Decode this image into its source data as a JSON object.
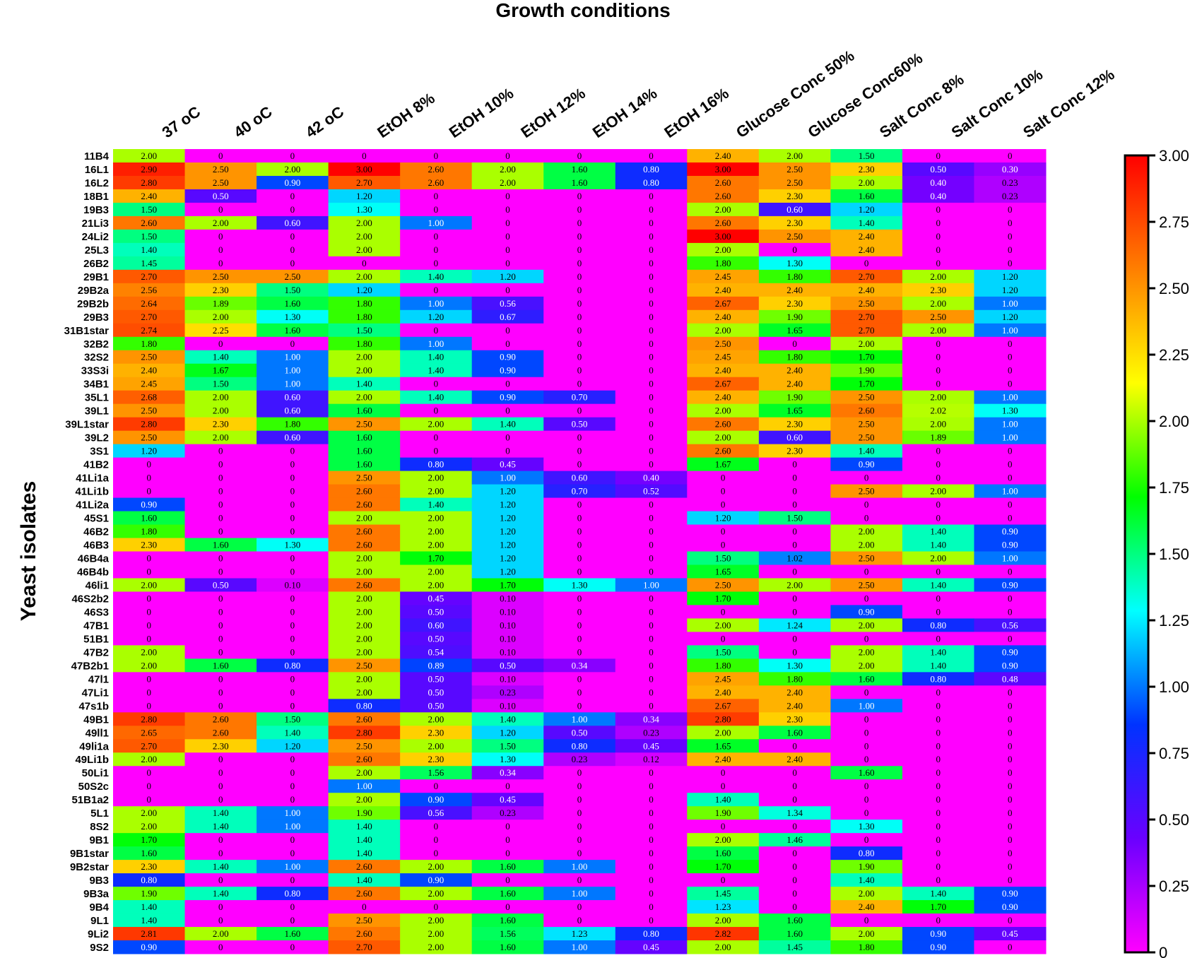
{
  "chart_data": {
    "type": "heatmap",
    "title": "Growth conditions",
    "ylabel": "Yeast isolates",
    "columns": [
      "37 oC",
      "40 oC",
      "42 oC",
      "EtOH 8%",
      "EtOH 10%",
      "EtOH 12%",
      "EtOH 14%",
      "EtOH 16%",
      "Glucose Conc 50%",
      "Glucose Conc60%",
      "Salt Conc 8%",
      "Salt Conc 10%",
      "Salt Conc 12%"
    ],
    "rows": [
      "11B4",
      "16L1",
      "16L2",
      "18B1",
      "19B3",
      "21Li3",
      "24Li2",
      "25L3",
      "26B2",
      "29B1",
      "29B2a",
      "29B2b",
      "29B3",
      "31B1star",
      "32B2",
      "32S2",
      "33S3i",
      "34B1",
      "35L1",
      "39L1",
      "39L1star",
      "39L2",
      "3S1",
      "41B2",
      "41Li1a",
      "41Li1b",
      "41Li2a",
      "45S1",
      "46B2",
      "46B3",
      "46B4a",
      "46B4b",
      "46li1",
      "46S2b2",
      "46S3",
      "47B1",
      "51B1",
      "47B2",
      "47B2b1",
      "47l1",
      "47Li1",
      "47s1b",
      "49B1",
      "49ll1",
      "49li1a",
      "49Li1b",
      "50Li1",
      "50S2c",
      "51B1a2",
      "5L1",
      "8S2",
      "9B1",
      "9B1star",
      "9B2star",
      "9B3",
      "9B3a",
      "9B4",
      "9L1",
      "9Li2",
      "9S2"
    ],
    "values": [
      [
        "2.00",
        "0",
        "0",
        "0",
        "0",
        "0",
        "0",
        "0",
        "2.40",
        "2.00",
        "1.50",
        "0",
        "0"
      ],
      [
        "2.90",
        "2.50",
        "2.00",
        "3.00",
        "2.60",
        "2.00",
        "1.60",
        "0.80",
        "3.00",
        "2.50",
        "2.30",
        "0.50",
        "0.30"
      ],
      [
        "2.80",
        "2.50",
        "0.90",
        "2.70",
        "2.60",
        "2.00",
        "1.60",
        "0.80",
        "2.60",
        "2.50",
        "2.00",
        "0.40",
        "0.23"
      ],
      [
        "2.40",
        "0.50",
        "0",
        "1.20",
        "0",
        "0",
        "0",
        "0",
        "2.60",
        "2.30",
        "1.60",
        "0.40",
        "0.23"
      ],
      [
        "1.50",
        "0",
        "0",
        "1.30",
        "0",
        "0",
        "0",
        "0",
        "2.00",
        "0.60",
        "1.20",
        "0",
        "0"
      ],
      [
        "2.60",
        "2.00",
        "0.60",
        "2.00",
        "1.00",
        "0",
        "0",
        "0",
        "2.60",
        "2.30",
        "1.40",
        "0",
        "0"
      ],
      [
        "1.50",
        "0",
        "0",
        "2.00",
        "0",
        "0",
        "0",
        "0",
        "3.00",
        "2.50",
        "2.40",
        "0",
        "0"
      ],
      [
        "1.40",
        "0",
        "0",
        "2.00",
        "0",
        "0",
        "0",
        "0",
        "2.00",
        "0",
        "2.40",
        "0",
        "0"
      ],
      [
        "1.45",
        "0",
        "0",
        "0",
        "0",
        "0",
        "0",
        "0",
        "1.80",
        "1.30",
        "0",
        "0",
        "0"
      ],
      [
        "2.70",
        "2.50",
        "2.50",
        "2.00",
        "1.40",
        "1.20",
        "0",
        "0",
        "2.45",
        "1.80",
        "2.70",
        "2.00",
        "1.20"
      ],
      [
        "2.56",
        "2.30",
        "1.50",
        "1.20",
        "0",
        "0",
        "0",
        "0",
        "2.40",
        "2.40",
        "2.40",
        "2.30",
        "1.20"
      ],
      [
        "2.64",
        "1.89",
        "1.60",
        "1.80",
        "1.00",
        "0.56",
        "0",
        "0",
        "2.67",
        "2.30",
        "2.50",
        "2.00",
        "1.00"
      ],
      [
        "2.70",
        "2.00",
        "1.30",
        "1.80",
        "1.20",
        "0.67",
        "0",
        "0",
        "2.40",
        "1.90",
        "2.70",
        "2.50",
        "1.20"
      ],
      [
        "2.74",
        "2.25",
        "1.60",
        "1.50",
        "0",
        "0",
        "0",
        "0",
        "2.00",
        "1.65",
        "2.70",
        "2.00",
        "1.00"
      ],
      [
        "1.80",
        "0",
        "0",
        "1.80",
        "1.00",
        "0",
        "0",
        "0",
        "2.50",
        "0",
        "2.00",
        "0",
        "0"
      ],
      [
        "2.50",
        "1.40",
        "1.00",
        "2.00",
        "1.40",
        "0.90",
        "0",
        "0",
        "2.45",
        "1.80",
        "1.70",
        "0",
        "0"
      ],
      [
        "2.40",
        "1.67",
        "1.00",
        "2.00",
        "1.40",
        "0.90",
        "0",
        "0",
        "2.40",
        "2.40",
        "1.90",
        "0",
        "0"
      ],
      [
        "2.45",
        "1.50",
        "1.00",
        "1.40",
        "0",
        "0",
        "0",
        "0",
        "2.67",
        "2.40",
        "1.70",
        "0",
        "0"
      ],
      [
        "2.68",
        "2.00",
        "0.60",
        "2.00",
        "1.40",
        "0.90",
        "0.70",
        "0",
        "2.40",
        "1.90",
        "2.50",
        "2.00",
        "1.00"
      ],
      [
        "2.50",
        "2.00",
        "0.60",
        "1.60",
        "0",
        "0",
        "0",
        "0",
        "2.00",
        "1.65",
        "2.60",
        "2.02",
        "1.30"
      ],
      [
        "2.80",
        "2.30",
        "1.80",
        "2.50",
        "2.00",
        "1.40",
        "0.50",
        "0",
        "2.60",
        "2.30",
        "2.50",
        "2.00",
        "1.00"
      ],
      [
        "2.50",
        "2.00",
        "0.60",
        "1.60",
        "0",
        "0",
        "0",
        "0",
        "2.00",
        "0.60",
        "2.50",
        "1.89",
        "1.00"
      ],
      [
        "1.20",
        "0",
        "0",
        "1.60",
        "0",
        "0",
        "0",
        "0",
        "2.60",
        "2.30",
        "1.40",
        "0",
        "0"
      ],
      [
        "0",
        "0",
        "0",
        "1.60",
        "0.80",
        "0.45",
        "0",
        "0",
        "1.67",
        "0",
        "0.90",
        "0",
        "0"
      ],
      [
        "0",
        "0",
        "0",
        "2.50",
        "2.00",
        "1.00",
        "0.60",
        "0.40",
        "0",
        "0",
        "0",
        "0",
        "0"
      ],
      [
        "0",
        "0",
        "0",
        "2.60",
        "2.00",
        "1.20",
        "0.70",
        "0.52",
        "0",
        "0",
        "2.50",
        "2.00",
        "1.00"
      ],
      [
        "0.90",
        "0",
        "0",
        "2.60",
        "1.40",
        "1.20",
        "0",
        "0",
        "0",
        "0",
        "0",
        "0",
        "0"
      ],
      [
        "1.60",
        "0",
        "0",
        "2.00",
        "2.00",
        "1.20",
        "0",
        "0",
        "1.20",
        "1.50",
        "0",
        "0",
        "0"
      ],
      [
        "1.80",
        "0",
        "0",
        "2.60",
        "2.00",
        "1.20",
        "0",
        "0",
        "0",
        "0",
        "2.00",
        "1.40",
        "0.90"
      ],
      [
        "2.30",
        "1.60",
        "1.30",
        "2.60",
        "2.00",
        "1.20",
        "0",
        "0",
        "0",
        "0",
        "2.00",
        "1.40",
        "0.90"
      ],
      [
        "0",
        "0",
        "0",
        "2.00",
        "1.70",
        "1.20",
        "0",
        "0",
        "1.50",
        "1.02",
        "2.50",
        "2.00",
        "1.00"
      ],
      [
        "0",
        "0",
        "0",
        "2.00",
        "2.00",
        "1.20",
        "0",
        "0",
        "1.65",
        "0",
        "0",
        "0",
        "0"
      ],
      [
        "2.00",
        "0.50",
        "0.10",
        "2.60",
        "2.00",
        "1.70",
        "1.30",
        "1.00",
        "2.50",
        "2.00",
        "2.50",
        "1.40",
        "0.90"
      ],
      [
        "0",
        "0",
        "0",
        "2.00",
        "0.45",
        "0.10",
        "0",
        "0",
        "1.70",
        "0",
        "0",
        "0",
        "0"
      ],
      [
        "0",
        "0",
        "0",
        "2.00",
        "0.50",
        "0.10",
        "0",
        "0",
        "0",
        "0",
        "0.90",
        "0",
        "0"
      ],
      [
        "0",
        "0",
        "0",
        "2.00",
        "0.60",
        "0.10",
        "0",
        "0",
        "2.00",
        "1.24",
        "2.00",
        "0.80",
        "0.56"
      ],
      [
        "0",
        "0",
        "0",
        "2.00",
        "0.50",
        "0.10",
        "0",
        "0",
        "0",
        "0",
        "0",
        "0",
        "0"
      ],
      [
        "2.00",
        "0",
        "0",
        "2.00",
        "0.54",
        "0.10",
        "0",
        "0",
        "1.50",
        "0",
        "2.00",
        "1.40",
        "0.90"
      ],
      [
        "2.00",
        "1.60",
        "0.80",
        "2.50",
        "0.89",
        "0.50",
        "0.34",
        "0",
        "1.80",
        "1.30",
        "2.00",
        "1.40",
        "0.90"
      ],
      [
        "0",
        "0",
        "0",
        "2.00",
        "0.50",
        "0.10",
        "0",
        "0",
        "2.45",
        "1.80",
        "1.60",
        "0.80",
        "0.48"
      ],
      [
        "0",
        "0",
        "0",
        "2.00",
        "0.50",
        "0.23",
        "0",
        "0",
        "2.40",
        "2.40",
        "0",
        "0",
        "0"
      ],
      [
        "0",
        "0",
        "0",
        "0.80",
        "0.50",
        "0.10",
        "0",
        "0",
        "2.67",
        "2.40",
        "1.00",
        "0",
        "0"
      ],
      [
        "2.80",
        "2.60",
        "1.50",
        "2.60",
        "2.00",
        "1.40",
        "1.00",
        "0.34",
        "2.80",
        "2.30",
        "0",
        "0",
        "0"
      ],
      [
        "2.65",
        "2.60",
        "1.40",
        "2.80",
        "2.30",
        "1.20",
        "0.50",
        "0.23",
        "2.00",
        "1.60",
        "0",
        "0",
        "0"
      ],
      [
        "2.70",
        "2.30",
        "1.20",
        "2.50",
        "2.00",
        "1.50",
        "0.80",
        "0.45",
        "1.65",
        "0",
        "0",
        "0",
        "0"
      ],
      [
        "2.00",
        "0",
        "0",
        "2.60",
        "2.30",
        "1.30",
        "0.23",
        "0.12",
        "2.40",
        "2.40",
        "0",
        "0",
        "0"
      ],
      [
        "0",
        "0",
        "0",
        "2.00",
        "1.56",
        "0.34",
        "0",
        "0",
        "0",
        "0",
        "1.60",
        "0",
        "0"
      ],
      [
        "0",
        "0",
        "0",
        "1.00",
        "0",
        "0",
        "0",
        "0",
        "0",
        "0",
        "0",
        "0",
        "0"
      ],
      [
        "0",
        "0",
        "0",
        "2.00",
        "0.90",
        "0.45",
        "0",
        "0",
        "1.40",
        "0",
        "0",
        "0",
        "0"
      ],
      [
        "2.00",
        "1.40",
        "1.00",
        "1.90",
        "0.56",
        "0.23",
        "0",
        "0",
        "1.90",
        "1.34",
        "0",
        "0",
        "0"
      ],
      [
        "2.00",
        "1.40",
        "1.00",
        "1.40",
        "0",
        "0",
        "0",
        "0",
        "0",
        "0",
        "1.30",
        "0",
        "0"
      ],
      [
        "1.70",
        "0",
        "0",
        "1.40",
        "0",
        "0",
        "0",
        "0",
        "2.00",
        "1.46",
        "0",
        "0",
        "0"
      ],
      [
        "1.60",
        "0",
        "0",
        "1.40",
        "0",
        "0",
        "0",
        "0",
        "1.60",
        "0",
        "0.80",
        "0",
        "0"
      ],
      [
        "2.30",
        "1.40",
        "1.00",
        "2.60",
        "2.00",
        "1.60",
        "1.00",
        "0",
        "1.70",
        "0",
        "1.90",
        "0",
        "0"
      ],
      [
        "0.80",
        "0",
        "0",
        "1.40",
        "0.90",
        "0",
        "0",
        "0",
        "0",
        "0",
        "1.40",
        "0",
        "0"
      ],
      [
        "1.90",
        "1.40",
        "0.80",
        "2.60",
        "2.00",
        "1.60",
        "1.00",
        "0",
        "1.45",
        "0",
        "2.00",
        "1.40",
        "0.90"
      ],
      [
        "1.40",
        "0",
        "0",
        "0",
        "0",
        "0",
        "0",
        "0",
        "1.23",
        "0",
        "2.40",
        "1.70",
        "0.90"
      ],
      [
        "1.40",
        "0",
        "0",
        "2.50",
        "2.00",
        "1.60",
        "0",
        "0",
        "2.00",
        "1.60",
        "0",
        "0",
        "0"
      ],
      [
        "2.81",
        "2.00",
        "1.60",
        "2.60",
        "2.00",
        "1.56",
        "1.23",
        "0.80",
        "2.82",
        "1.60",
        "2.00",
        "0.90",
        "0.45"
      ],
      [
        "0.90",
        "0",
        "0",
        "2.70",
        "2.00",
        "1.60",
        "1.00",
        "0.45",
        "2.00",
        "1.45",
        "1.80",
        "0.90",
        "0"
      ]
    ],
    "colorbar": {
      "min": 0,
      "max": 3,
      "ticks": [
        "0",
        "0.25",
        "0.50",
        "0.75",
        "1.00",
        "1.25",
        "1.50",
        "1.75",
        "2.00",
        "2.25",
        "2.50",
        "2.75",
        "3.00"
      ],
      "colors": [
        "#ff00ff",
        "#6a00ff",
        "#0033ff",
        "#00ffff",
        "#00ff00",
        "#ffff00",
        "#ff7f00",
        "#ff0000"
      ]
    }
  }
}
